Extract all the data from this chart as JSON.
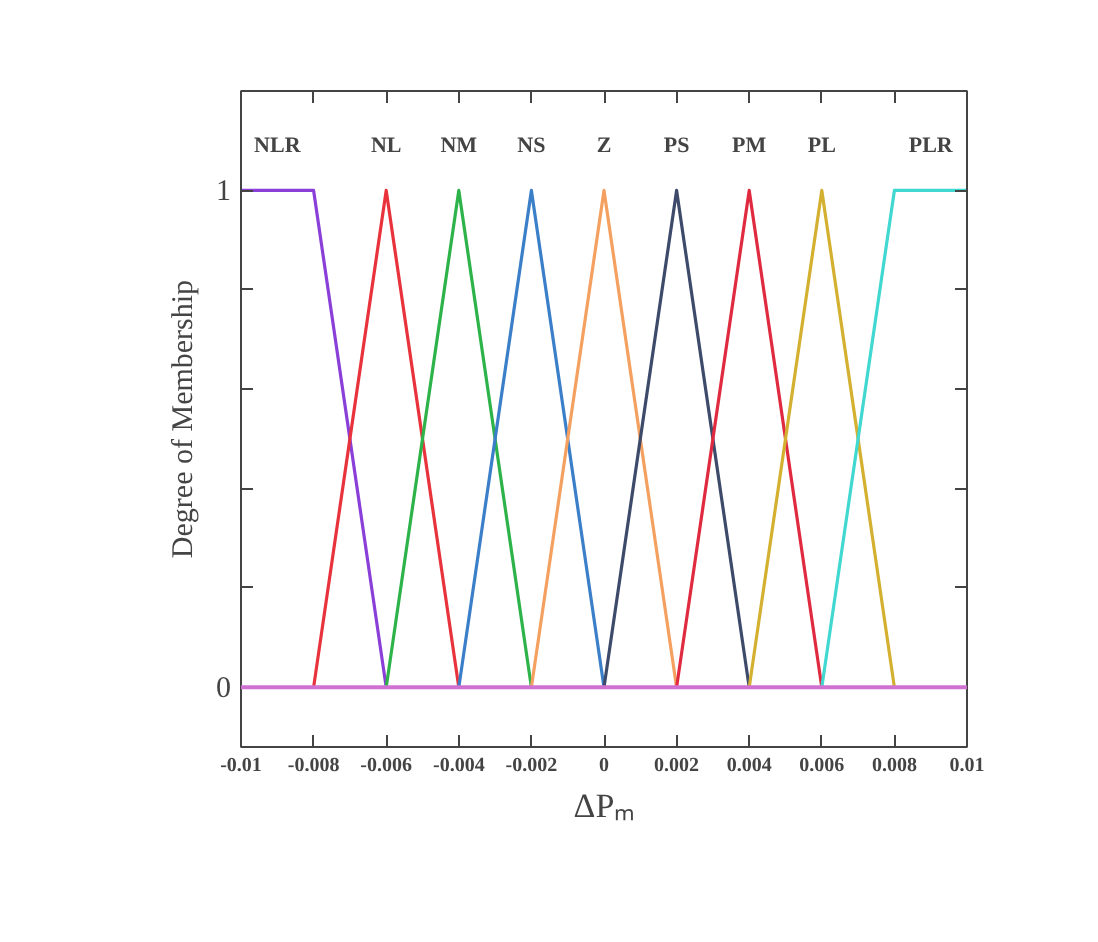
{
  "chart_data": {
    "type": "line",
    "xlabel": "ΔPₘ",
    "ylabel": "Degree of Membership",
    "xlim": [
      -0.01,
      0.01
    ],
    "ylim": [
      -0.12,
      1.2
    ],
    "xticks": [
      -0.01,
      -0.008,
      -0.006,
      -0.004,
      -0.002,
      0,
      0.002,
      0.004,
      0.006,
      0.008,
      0.01
    ],
    "yticks": [
      0,
      {
        "value": 0.2,
        "label": null
      },
      {
        "value": 0.4,
        "label": null
      },
      {
        "value": 0.6,
        "label": null
      },
      {
        "value": 0.8,
        "label": null
      },
      1
    ],
    "grid": false,
    "legend": false,
    "marker": "none",
    "line_style": "solid",
    "ref_lines": [
      {
        "axis": "y",
        "value": 0,
        "label": null,
        "color": "#d070d0"
      }
    ],
    "series": [
      {
        "name": "NLR",
        "color": "#8a3fd8",
        "x": [
          -0.01,
          -0.008,
          -0.006
        ],
        "values": [
          1,
          1,
          0
        ]
      },
      {
        "name": "NL",
        "color": "#e8323c",
        "x": [
          -0.008,
          -0.006,
          -0.004
        ],
        "values": [
          0,
          1,
          0
        ]
      },
      {
        "name": "NM",
        "color": "#2db34a",
        "x": [
          -0.006,
          -0.004,
          -0.002
        ],
        "values": [
          0,
          1,
          0
        ]
      },
      {
        "name": "NS",
        "color": "#3a7fc8",
        "x": [
          -0.004,
          -0.002,
          0
        ],
        "values": [
          0,
          1,
          0
        ]
      },
      {
        "name": "Z",
        "color": "#f4a060",
        "x": [
          -0.002,
          0,
          0.002
        ],
        "values": [
          0,
          1,
          0
        ]
      },
      {
        "name": "PS",
        "color": "#3d4a6a",
        "x": [
          0,
          0.002,
          0.004
        ],
        "values": [
          0,
          1,
          0
        ]
      },
      {
        "name": "PM",
        "color": "#e02a40",
        "x": [
          0.002,
          0.004,
          0.006
        ],
        "values": [
          0,
          1,
          0
        ]
      },
      {
        "name": "PL",
        "color": "#d4b030",
        "x": [
          0.004,
          0.006,
          0.008
        ],
        "values": [
          0,
          1,
          0
        ]
      },
      {
        "name": "PLR",
        "color": "#40d8d0",
        "x": [
          0.006,
          0.008,
          0.01
        ],
        "values": [
          0,
          1,
          1
        ]
      }
    ]
  }
}
